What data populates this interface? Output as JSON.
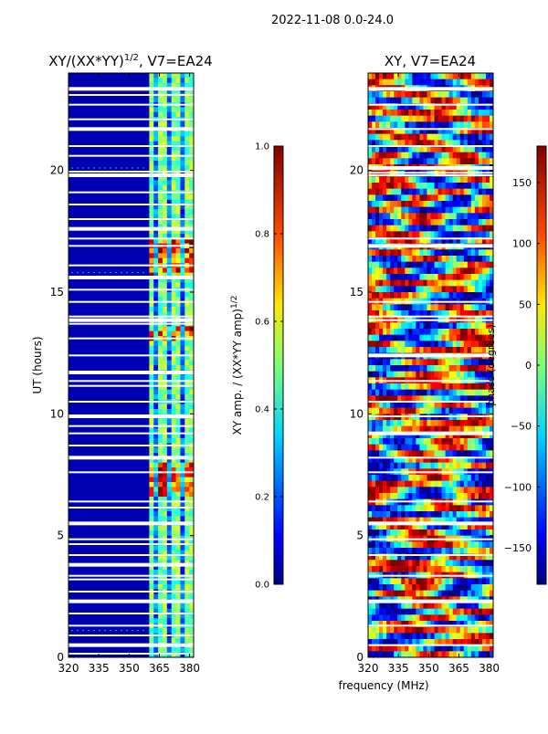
{
  "figure": {
    "suptitle": "2022-11-08 0.0-24.0",
    "shared_xlabel": "frequency (MHz)"
  },
  "colors": {
    "axis": "#000000",
    "gap": "#ffffff",
    "jet": [
      "#000080",
      "#0000ff",
      "#0080ff",
      "#00ffff",
      "#80ff80",
      "#ffff00",
      "#ff8000",
      "#ff0000",
      "#800000"
    ]
  },
  "chart_data": [
    {
      "type": "heatmap",
      "name": "amplitude-ratio",
      "title_main": "XY/(XX*YY)",
      "title_sup": "1/2",
      "title_suffix": ", V7=EA24",
      "xlabel": "",
      "ylabel": "UT (hours)",
      "xlim": [
        320,
        382
      ],
      "ylim": [
        0,
        24
      ],
      "xticks": [
        320,
        335,
        350,
        365,
        380
      ],
      "yticks": [
        0,
        5,
        10,
        15,
        20
      ],
      "hot_band_mhz": [
        360,
        382
      ],
      "colorbar": {
        "label_main": "XY amp. / (XX*YY amp)",
        "label_sup": "1/2",
        "range": [
          0.0,
          1.0
        ],
        "ticks": [
          "0.0",
          "0.2",
          "0.4",
          "0.6",
          "0.8",
          "1.0"
        ]
      },
      "gaps_hours": [
        23.35,
        23.1,
        22.7,
        22.1,
        21.7,
        21.0,
        20.6,
        19.95,
        19.8,
        19.1,
        18.6,
        18.0,
        17.6,
        17.2,
        16.9,
        16.1,
        15.6,
        15.1,
        14.6,
        14.0,
        13.85,
        13.7,
        13.1,
        12.4,
        11.7,
        11.35,
        11.15,
        10.5,
        9.9,
        9.5,
        9.2,
        8.7,
        8.2,
        7.6,
        6.4,
        6.15,
        5.5,
        4.85,
        4.65,
        4.2,
        3.8,
        3.35,
        3.2,
        2.7,
        2.3,
        1.8,
        1.3,
        0.9,
        0.5,
        0.15
      ]
    },
    {
      "type": "heatmap",
      "name": "phase",
      "title_main": "XY",
      "title_suffix": ", V7=EA24",
      "xlabel": "frequency (MHz)",
      "ylabel": "",
      "xlim": [
        320,
        382
      ],
      "ylim": [
        0,
        24
      ],
      "xticks": [
        320,
        335,
        350,
        365,
        380
      ],
      "yticks": [
        0,
        5,
        10,
        15,
        20
      ],
      "colorbar": {
        "label": "phase (degrees)",
        "range": [
          -180,
          180
        ],
        "ticks": [
          "150",
          "100",
          "50",
          "0",
          "−50",
          "−100",
          "−150"
        ],
        "tick_values": [
          150,
          100,
          50,
          0,
          -50,
          -100,
          -150
        ]
      },
      "gaps_hours": [
        23.35,
        22.7,
        21.7,
        21.0,
        20.1,
        19.9,
        19.8,
        17.2,
        16.9,
        14.6,
        14.0,
        13.85,
        12.4,
        11.35,
        10.5,
        9.9,
        9.2,
        8.2,
        7.6,
        6.4,
        5.5,
        4.85,
        4.2,
        3.35,
        2.3,
        1.3,
        0.5
      ]
    }
  ]
}
